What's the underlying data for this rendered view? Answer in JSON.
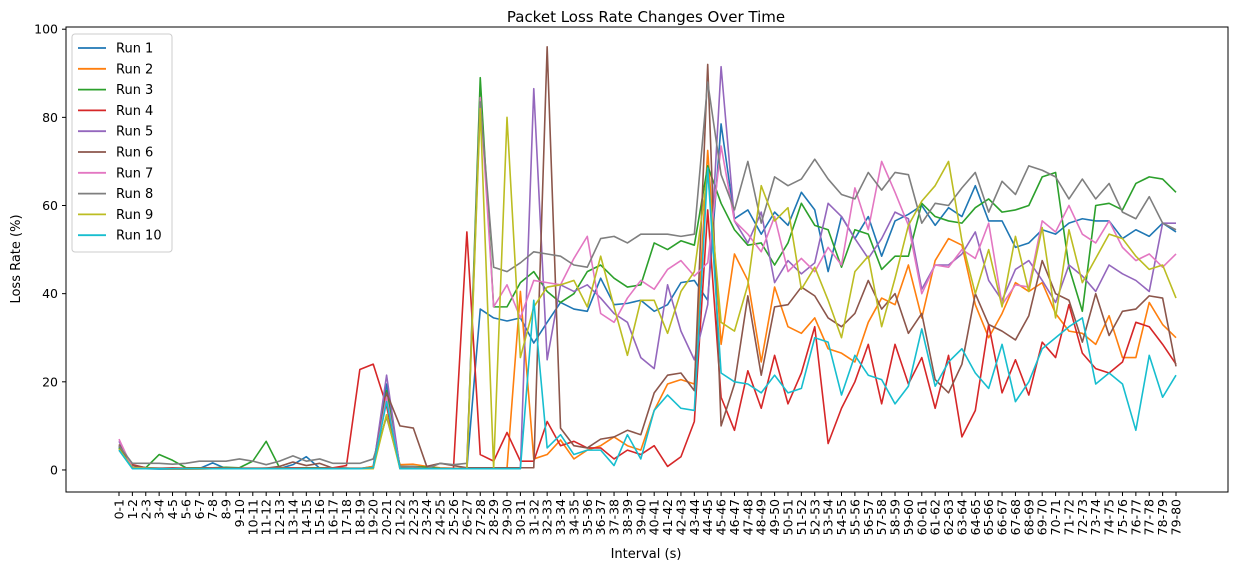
{
  "chart_data": {
    "type": "line",
    "title": "Packet Loss Rate Changes Over Time",
    "xlabel": "Interval (s)",
    "ylabel": "Loss Rate (%)",
    "ylim": [
      -5,
      100.5
    ],
    "yticks": [
      0,
      20,
      40,
      60,
      80,
      100
    ],
    "grid": false,
    "legend_position": "top-left",
    "categories": [
      "0-1",
      "1-2",
      "2-3",
      "3-4",
      "4-5",
      "5-6",
      "6-7",
      "7-8",
      "8-9",
      "9-10",
      "10-11",
      "11-12",
      "12-13",
      "13-14",
      "14-15",
      "15-16",
      "16-17",
      "17-18",
      "18-19",
      "19-20",
      "20-21",
      "21-22",
      "22-23",
      "23-24",
      "24-25",
      "25-26",
      "26-27",
      "27-28",
      "28-29",
      "29-30",
      "30-31",
      "31-32",
      "32-33",
      "33-34",
      "34-35",
      "35-36",
      "36-37",
      "37-38",
      "38-39",
      "39-40",
      "40-41",
      "41-42",
      "42-43",
      "43-44",
      "44-45",
      "45-46",
      "46-47",
      "47-48",
      "48-49",
      "49-50",
      "50-51",
      "51-52",
      "52-53",
      "53-54",
      "54-55",
      "55-56",
      "56-57",
      "57-58",
      "58-59",
      "59-60",
      "60-61",
      "61-62",
      "62-63",
      "63-64",
      "64-65",
      "65-66",
      "66-67",
      "67-68",
      "68-69",
      "69-70",
      "70-71",
      "71-72",
      "72-73",
      "73-74",
      "74-75",
      "75-76",
      "76-77",
      "77-78",
      "78-79",
      "79-80"
    ],
    "series": [
      {
        "name": "Run 1",
        "color": "#1f77b4",
        "values": [
          5.2,
          0.4,
          0.3,
          0.2,
          0.2,
          0.2,
          0.3,
          1.6,
          0.3,
          0.4,
          0.3,
          0.4,
          0.3,
          1.2,
          3.0,
          0.4,
          0.5,
          0.4,
          0.3,
          0.8,
          19.5,
          0.5,
          0.4,
          0.3,
          0.3,
          0.3,
          0.3,
          36.5,
          34.5,
          33.8,
          34.5,
          28.8,
          33.5,
          38.0,
          36.5,
          36.0,
          43.5,
          37.5,
          37.8,
          38.5,
          36.0,
          37.5,
          42.5,
          43.0,
          38.5,
          78.5,
          57.0,
          59.0,
          53.5,
          58.5,
          55.5,
          63.0,
          59.0,
          45.0,
          57.5,
          52.5,
          57.5,
          48.5,
          56.5,
          58.0,
          60.0,
          55.5,
          59.5,
          57.5,
          64.5,
          56.5,
          56.5,
          50.5,
          51.5,
          54.5,
          53.5,
          56.0,
          57.0,
          56.5,
          56.5,
          52.5,
          54.5,
          53.0,
          56.0,
          54.0
        ]
      },
      {
        "name": "Run 2",
        "color": "#ff7f0e",
        "values": [
          4.5,
          0.5,
          0.3,
          0.3,
          0.2,
          0.2,
          0.2,
          0.3,
          0.3,
          0.3,
          0.3,
          0.4,
          0.3,
          0.3,
          0.4,
          0.3,
          0.3,
          0.3,
          0.3,
          0.8,
          12.5,
          1.2,
          1.3,
          0.8,
          0.5,
          0.4,
          0.4,
          0.3,
          0.5,
          0.4,
          40.5,
          2.5,
          3.5,
          6.8,
          2.5,
          4.5,
          5.5,
          7.5,
          5.5,
          4.5,
          13.5,
          19.5,
          20.5,
          19.5,
          72.5,
          28.5,
          49.0,
          43.0,
          24.5,
          41.5,
          32.5,
          31.0,
          34.5,
          27.5,
          26.5,
          24.5,
          33.5,
          39.0,
          37.5,
          46.5,
          34.5,
          47.5,
          52.5,
          51.0,
          37.5,
          30.0,
          35.5,
          42.5,
          40.5,
          42.5,
          35.5,
          31.5,
          31.0,
          28.5,
          35.0,
          25.5,
          25.5,
          38.0,
          33.0,
          30.0
        ]
      },
      {
        "name": "Run 3",
        "color": "#2ca02c",
        "values": [
          5.0,
          1.0,
          0.5,
          3.5,
          2.2,
          0.5,
          0.5,
          0.5,
          0.6,
          0.5,
          2.0,
          6.5,
          0.5,
          0.5,
          0.5,
          0.5,
          0.5,
          0.4,
          0.3,
          0.5,
          18.0,
          0.8,
          0.8,
          0.6,
          0.4,
          0.3,
          0.3,
          89.0,
          37.0,
          37.0,
          42.5,
          45.0,
          40.5,
          38.0,
          40.0,
          45.0,
          46.5,
          43.5,
          41.5,
          42.0,
          51.5,
          50.0,
          52.0,
          51.0,
          69.0,
          60.5,
          54.5,
          51.0,
          51.5,
          46.5,
          51.5,
          60.5,
          55.5,
          54.5,
          46.0,
          54.5,
          53.5,
          45.5,
          48.5,
          48.5,
          60.5,
          57.5,
          56.5,
          56.0,
          59.5,
          61.5,
          58.5,
          59.0,
          60.0,
          66.5,
          67.5,
          46.0,
          36.0,
          60.0,
          60.5,
          59.0,
          65.0,
          66.5,
          66.0,
          63.0
        ]
      },
      {
        "name": "Run 4",
        "color": "#d62728",
        "values": [
          5.5,
          1.2,
          0.5,
          0.4,
          0.5,
          0.4,
          0.4,
          0.5,
          0.4,
          0.4,
          0.4,
          0.4,
          0.4,
          0.5,
          0.4,
          0.4,
          0.5,
          1.0,
          22.8,
          24.0,
          14.5,
          0.3,
          0.3,
          0.3,
          0.3,
          0.4,
          54.0,
          3.5,
          2.0,
          8.5,
          2.0,
          2.0,
          11.0,
          5.5,
          6.5,
          5.0,
          5.0,
          2.5,
          4.5,
          3.5,
          5.5,
          0.8,
          3.0,
          11.0,
          59.0,
          16.5,
          9.0,
          22.5,
          14.0,
          26.0,
          15.0,
          22.0,
          32.5,
          6.0,
          14.0,
          20.0,
          28.5,
          15.0,
          28.5,
          19.5,
          25.5,
          14.0,
          26.0,
          7.5,
          13.5,
          33.0,
          17.5,
          25.0,
          17.0,
          29.0,
          25.5,
          37.5,
          26.5,
          23.0,
          22.0,
          24.5,
          33.5,
          32.5,
          28.5,
          24.0
        ]
      },
      {
        "name": "Run 5",
        "color": "#9467bd",
        "values": [
          6.5,
          0.5,
          0.5,
          0.3,
          0.3,
          0.3,
          0.3,
          0.3,
          0.3,
          0.3,
          0.3,
          0.3,
          0.3,
          0.3,
          0.3,
          0.3,
          0.3,
          0.3,
          0.3,
          0.3,
          21.5,
          0.3,
          0.3,
          0.3,
          0.3,
          0.3,
          0.3,
          0.3,
          0.3,
          0.3,
          0.3,
          86.5,
          25.0,
          42.0,
          40.5,
          42.0,
          39.0,
          35.5,
          33.5,
          25.5,
          23.0,
          42.0,
          31.5,
          25.0,
          37.5,
          91.5,
          56.5,
          51.5,
          58.5,
          42.5,
          47.5,
          44.5,
          47.0,
          60.5,
          57.5,
          52.5,
          48.0,
          52.5,
          58.5,
          57.0,
          41.0,
          46.5,
          46.5,
          49.0,
          54.0,
          43.0,
          38.5,
          45.5,
          47.5,
          43.0,
          38.0,
          46.5,
          44.0,
          40.5,
          46.5,
          44.5,
          43.0,
          40.5,
          56.0,
          56.0
        ]
      },
      {
        "name": "Run 6",
        "color": "#8c564b",
        "values": [
          5.8,
          1.0,
          0.5,
          0.4,
          0.3,
          0.3,
          0.4,
          0.4,
          0.4,
          0.4,
          0.4,
          0.4,
          0.8,
          1.8,
          1.0,
          1.5,
          0.4,
          0.4,
          0.4,
          0.4,
          17.5,
          10.0,
          9.5,
          0.8,
          1.5,
          1.0,
          0.5,
          0.5,
          0.5,
          0.5,
          0.5,
          0.5,
          96.0,
          9.5,
          5.5,
          5.0,
          7.0,
          7.5,
          9.0,
          8.0,
          17.5,
          21.5,
          22.0,
          18.0,
          92.0,
          10.0,
          19.5,
          39.5,
          21.5,
          37.0,
          37.5,
          41.5,
          39.5,
          34.5,
          32.5,
          35.5,
          43.0,
          36.5,
          40.0,
          31.0,
          35.5,
          20.5,
          17.5,
          24.0,
          40.0,
          33.0,
          31.5,
          29.5,
          35.0,
          47.5,
          40.0,
          38.5,
          29.0,
          40.0,
          30.5,
          36.0,
          36.5,
          39.5,
          39.0,
          23.5
        ]
      },
      {
        "name": "Run 7",
        "color": "#e377c2",
        "values": [
          7.0,
          0.5,
          0.4,
          0.3,
          0.3,
          0.3,
          0.3,
          0.3,
          0.3,
          0.3,
          0.3,
          0.3,
          0.3,
          0.3,
          0.3,
          0.3,
          0.3,
          0.3,
          0.3,
          0.3,
          16.5,
          0.3,
          0.3,
          0.3,
          0.3,
          0.3,
          0.3,
          84.5,
          37.0,
          42.0,
          34.5,
          43.0,
          42.5,
          42.0,
          48.0,
          53.0,
          35.5,
          33.5,
          39.0,
          43.0,
          41.0,
          45.5,
          47.5,
          44.0,
          47.0,
          73.5,
          56.5,
          53.5,
          49.5,
          57.5,
          45.0,
          48.0,
          45.0,
          50.5,
          46.5,
          64.0,
          54.5,
          70.0,
          63.0,
          55.5,
          40.0,
          46.5,
          46.0,
          50.0,
          48.0,
          56.0,
          37.5,
          42.0,
          41.5,
          56.5,
          54.0,
          60.0,
          53.5,
          51.5,
          56.5,
          50.5,
          47.5,
          49.0,
          46.0,
          49.0
        ]
      },
      {
        "name": "Run 8",
        "color": "#7f7f7f",
        "values": [
          5.5,
          1.5,
          1.5,
          1.5,
          1.3,
          1.5,
          2.0,
          2.0,
          2.0,
          2.5,
          2.0,
          1.2,
          2.0,
          3.2,
          2.0,
          2.5,
          1.5,
          1.5,
          1.5,
          2.5,
          12.0,
          0.8,
          0.8,
          0.3,
          1.5,
          1.2,
          1.5,
          83.5,
          46.0,
          45.0,
          47.0,
          49.5,
          49.0,
          48.5,
          46.5,
          46.0,
          52.5,
          53.0,
          51.5,
          53.5,
          53.5,
          53.5,
          53.0,
          53.5,
          88.0,
          67.0,
          59.0,
          70.0,
          56.0,
          66.5,
          64.5,
          66.0,
          70.5,
          66.0,
          62.5,
          61.5,
          67.5,
          63.5,
          67.5,
          67.0,
          56.0,
          60.5,
          60.0,
          64.0,
          67.5,
          58.5,
          65.5,
          62.5,
          69.0,
          68.0,
          66.5,
          61.5,
          66.0,
          61.5,
          65.0,
          58.5,
          57.0,
          62.0,
          56.0,
          54.5
        ]
      },
      {
        "name": "Run 9",
        "color": "#bcbd22",
        "values": [
          4.8,
          0.5,
          0.4,
          0.3,
          0.3,
          0.3,
          0.3,
          0.3,
          0.3,
          0.3,
          0.3,
          0.3,
          0.3,
          0.3,
          0.3,
          0.3,
          0.3,
          0.3,
          0.3,
          0.3,
          12.5,
          0.3,
          0.3,
          0.3,
          0.3,
          0.3,
          0.3,
          82.0,
          0.3,
          80.0,
          25.5,
          37.0,
          41.5,
          42.0,
          43.0,
          37.0,
          48.5,
          37.0,
          26.0,
          38.5,
          38.5,
          31.0,
          40.5,
          45.0,
          67.5,
          33.5,
          31.5,
          42.0,
          64.5,
          56.5,
          59.5,
          41.0,
          46.0,
          38.5,
          30.0,
          45.0,
          48.5,
          32.5,
          43.5,
          55.5,
          61.0,
          64.5,
          70.0,
          52.0,
          40.0,
          50.0,
          37.0,
          53.0,
          40.5,
          55.0,
          34.5,
          54.5,
          42.5,
          48.0,
          53.5,
          52.5,
          48.5,
          45.5,
          46.5,
          39.0
        ]
      },
      {
        "name": "Run 10",
        "color": "#17becf",
        "values": [
          4.5,
          0.3,
          0.3,
          0.3,
          0.3,
          0.3,
          0.3,
          0.3,
          0.3,
          0.3,
          0.3,
          0.3,
          0.3,
          0.3,
          0.3,
          0.3,
          0.3,
          0.3,
          0.3,
          0.5,
          15.5,
          0.3,
          0.3,
          0.3,
          0.3,
          0.3,
          0.3,
          0.3,
          0.3,
          0.3,
          0.3,
          38.5,
          5.0,
          8.0,
          3.5,
          4.5,
          4.5,
          1.0,
          8.0,
          2.5,
          13.5,
          17.0,
          14.0,
          13.5,
          68.5,
          22.0,
          20.0,
          19.5,
          17.5,
          21.5,
          17.5,
          18.5,
          30.0,
          29.0,
          17.0,
          26.0,
          21.5,
          20.5,
          15.0,
          19.0,
          32.0,
          19.0,
          24.5,
          27.5,
          22.0,
          18.5,
          28.5,
          15.5,
          20.0,
          27.5,
          30.0,
          32.5,
          34.5,
          19.5,
          22.0,
          19.5,
          9.0,
          26.0,
          16.5,
          21.5
        ]
      }
    ]
  }
}
